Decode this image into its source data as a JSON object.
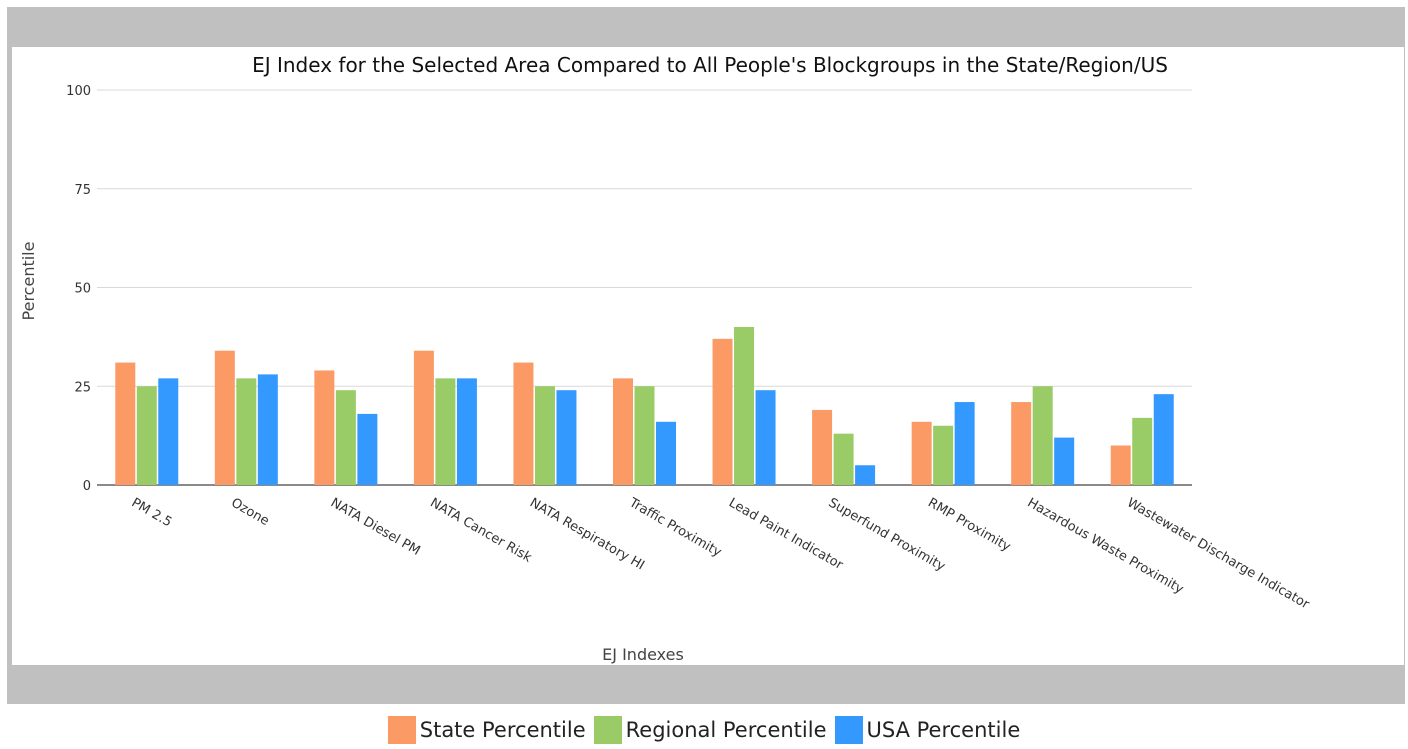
{
  "chart_data": {
    "type": "bar",
    "title": "EJ Index for the Selected Area Compared to All People's Blockgroups in the State/Region/US",
    "xlabel": "EJ Indexes",
    "ylabel": "Percentile",
    "ylim": [
      0,
      100
    ],
    "yticks": [
      "0",
      "25",
      "50",
      "75",
      "100"
    ],
    "grid": true,
    "legend_placement": "bottom-center",
    "categories": [
      "PM 2.5",
      "Ozone",
      "NATA Diesel PM",
      "NATA Cancer Risk",
      "NATA Respiratory HI",
      "Traffic Proximity",
      "Lead Paint Indicator",
      "Superfund Proximity",
      "RMP Proximity",
      "Hazardous Waste Proximity",
      "Wastewater Discharge Indicator"
    ],
    "series": [
      {
        "name": "State Percentile",
        "color": "#fc9a66",
        "values": [
          31,
          34,
          29,
          34,
          31,
          27,
          37,
          19,
          16,
          21,
          10
        ]
      },
      {
        "name": "Regional Percentile",
        "color": "#99cc66",
        "values": [
          25,
          27,
          24,
          27,
          25,
          25,
          40,
          13,
          15,
          25,
          17
        ]
      },
      {
        "name": "USA Percentile",
        "color": "#3399ff",
        "values": [
          27,
          28,
          18,
          27,
          24,
          16,
          24,
          5,
          21,
          12,
          23
        ]
      }
    ]
  }
}
